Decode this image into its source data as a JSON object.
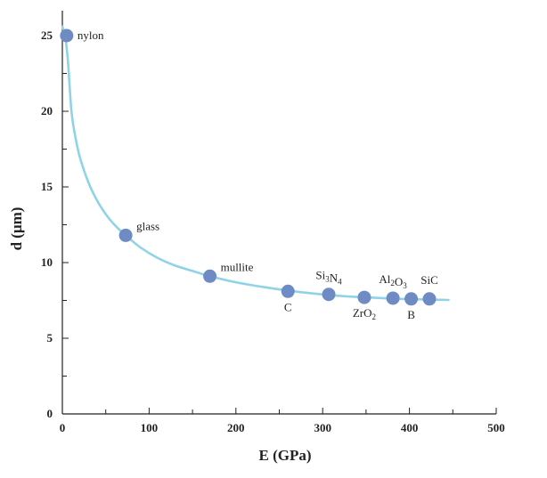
{
  "chart_data": {
    "type": "scatter",
    "title": "",
    "xlabel": "E (GPa)",
    "ylabel": "d (μm)",
    "xlim": [
      0,
      500
    ],
    "ylim": [
      0,
      26
    ],
    "xticks": [
      0,
      100,
      200,
      300,
      400,
      500
    ],
    "yticks": [
      0,
      5,
      10,
      15,
      20,
      25
    ],
    "xtick_labels": [
      "0",
      "100",
      "200",
      "300",
      "400",
      "500"
    ],
    "ytick_labels": [
      "0",
      "5",
      "10",
      "15",
      "20",
      "25"
    ],
    "grid": false,
    "legend": false,
    "colors": {
      "marker": "#6e8bc4",
      "curve": "#8fd3e6",
      "axis": "#222222"
    },
    "points": [
      {
        "label": "nylon",
        "x": 5,
        "y": 25.0,
        "label_pos": "right"
      },
      {
        "label": "glass",
        "x": 73,
        "y": 11.8,
        "label_pos": "upper-right"
      },
      {
        "label": "mullite",
        "x": 170,
        "y": 9.1,
        "label_pos": "upper-right"
      },
      {
        "label": "C",
        "x": 260,
        "y": 8.1,
        "label_pos": "below"
      },
      {
        "label": "Si3N4",
        "x": 307,
        "y": 7.9,
        "label_pos": "above"
      },
      {
        "label": "ZrO2",
        "x": 348,
        "y": 7.7,
        "label_pos": "below"
      },
      {
        "label": "Al2O3",
        "x": 381,
        "y": 7.65,
        "label_pos": "above"
      },
      {
        "label": "B",
        "x": 402,
        "y": 7.6,
        "label_pos": "below"
      },
      {
        "label": "SiC",
        "x": 423,
        "y": 7.6,
        "label_pos": "above"
      }
    ],
    "curve": {
      "x": [
        0,
        3,
        6,
        8,
        10,
        12,
        15,
        20,
        30,
        40,
        50,
        60,
        73,
        90,
        110,
        130,
        150,
        170,
        200,
        230,
        260,
        290,
        320,
        350,
        380,
        410,
        445
      ],
      "y": [
        25.6,
        25.0,
        23.6,
        22.0,
        20.3,
        19.3,
        18.3,
        17.0,
        15.3,
        14.1,
        13.2,
        12.5,
        11.8,
        11.0,
        10.3,
        9.8,
        9.45,
        9.1,
        8.7,
        8.4,
        8.15,
        7.95,
        7.8,
        7.7,
        7.62,
        7.57,
        7.53
      ]
    }
  }
}
